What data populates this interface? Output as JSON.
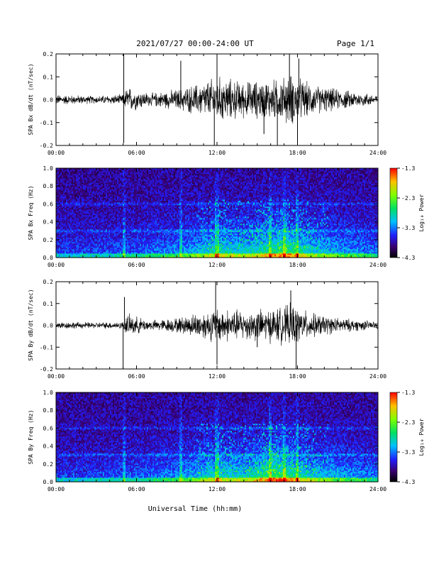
{
  "header": {
    "date_range": "2021/07/27  00:00-24:00 UT",
    "page": "Page 1/1"
  },
  "xlabel": "Universal Time (hh:mm)",
  "colors": {
    "trace": "#000000"
  },
  "chart_data": [
    {
      "type": "line",
      "ylabel": "SPA Bx dB/dt (nT/sec)",
      "xlim": [
        0,
        24
      ],
      "ylim": [
        -0.2,
        0.2
      ],
      "y_ticks": [
        "0.2",
        "0.1",
        "0.0",
        "-0.1",
        "-0.2"
      ],
      "x_ticks": [
        "00:00",
        "06:00",
        "12:00",
        "18:00",
        "24:00"
      ],
      "activity_envelope": [
        {
          "t": 0,
          "amp": 0.02
        },
        {
          "t": 3,
          "amp": 0.015
        },
        {
          "t": 5,
          "amp": 0.02
        },
        {
          "t": 5.3,
          "amp": 0.05
        },
        {
          "t": 7,
          "amp": 0.025
        },
        {
          "t": 9,
          "amp": 0.04
        },
        {
          "t": 10.5,
          "amp": 0.06
        },
        {
          "t": 12,
          "amp": 0.09
        },
        {
          "t": 14,
          "amp": 0.07
        },
        {
          "t": 16.5,
          "amp": 0.08
        },
        {
          "t": 17.5,
          "amp": 0.1
        },
        {
          "t": 19,
          "amp": 0.06
        },
        {
          "t": 21,
          "amp": 0.04
        },
        {
          "t": 24,
          "amp": 0.02
        }
      ],
      "spikes": [
        {
          "t": 5.05,
          "value": -0.19
        },
        {
          "t": 5.05,
          "value": 0.2
        },
        {
          "t": 9.3,
          "value": 0.17
        },
        {
          "t": 11.8,
          "value": -0.2
        },
        {
          "t": 12.0,
          "value": 0.2
        },
        {
          "t": 15.5,
          "value": -0.15
        },
        {
          "t": 16.5,
          "value": -0.2
        },
        {
          "t": 17.4,
          "value": 0.2
        },
        {
          "t": 18.0,
          "value": -0.2
        },
        {
          "t": 18.1,
          "value": 0.18
        }
      ]
    },
    {
      "type": "heatmap",
      "ylabel": "SPA Bx Freq (Hz)",
      "xlim": [
        0,
        24
      ],
      "ylim": [
        0,
        1.0
      ],
      "y_ticks": [
        "1.0",
        "0.8",
        "0.6",
        "0.4",
        "0.2",
        "0.0"
      ],
      "x_ticks": [
        "00:00",
        "06:00",
        "12:00",
        "18:00",
        "24:00"
      ],
      "colorbar": {
        "label": "Log₁₀ Power",
        "ticks": [
          "-1.3",
          "-2.3",
          "-3.3",
          "-4.3"
        ],
        "range": [
          -4.3,
          -1.3
        ]
      },
      "activity_envelope": [
        {
          "t": 0,
          "level": 0.2
        },
        {
          "t": 5,
          "level": 0.25
        },
        {
          "t": 9,
          "level": 0.35
        },
        {
          "t": 12,
          "level": 0.55
        },
        {
          "t": 14,
          "level": 0.5
        },
        {
          "t": 17,
          "level": 0.7
        },
        {
          "t": 19,
          "level": 0.5
        },
        {
          "t": 24,
          "level": 0.3
        }
      ]
    },
    {
      "type": "line",
      "ylabel": "SPA By dB/dt (nT/sec)",
      "xlim": [
        0,
        24
      ],
      "ylim": [
        -0.2,
        0.2
      ],
      "y_ticks": [
        "0.2",
        "0.1",
        "0.0",
        "-0.1",
        "-0.2"
      ],
      "x_ticks": [
        "00:00",
        "06:00",
        "12:00",
        "18:00",
        "24:00"
      ],
      "activity_envelope": [
        {
          "t": 0,
          "amp": 0.015
        },
        {
          "t": 3,
          "amp": 0.012
        },
        {
          "t": 5,
          "amp": 0.015
        },
        {
          "t": 5.3,
          "amp": 0.045
        },
        {
          "t": 7,
          "amp": 0.02
        },
        {
          "t": 9,
          "amp": 0.03
        },
        {
          "t": 10.5,
          "amp": 0.05
        },
        {
          "t": 12,
          "amp": 0.07
        },
        {
          "t": 14,
          "amp": 0.06
        },
        {
          "t": 16.5,
          "amp": 0.07
        },
        {
          "t": 17.5,
          "amp": 0.085
        },
        {
          "t": 19,
          "amp": 0.05
        },
        {
          "t": 21,
          "amp": 0.03
        },
        {
          "t": 24,
          "amp": 0.015
        }
      ],
      "spikes": [
        {
          "t": 5.0,
          "value": -0.2
        },
        {
          "t": 5.1,
          "value": 0.13
        },
        {
          "t": 11.9,
          "value": 0.2
        },
        {
          "t": 12.0,
          "value": -0.18
        },
        {
          "t": 15.0,
          "value": -0.1
        },
        {
          "t": 17.5,
          "value": 0.16
        },
        {
          "t": 17.9,
          "value": -0.2
        }
      ]
    },
    {
      "type": "heatmap",
      "ylabel": "SPA By Freq (Hz)",
      "xlim": [
        0,
        24
      ],
      "ylim": [
        0,
        1.0
      ],
      "y_ticks": [
        "1.0",
        "0.8",
        "0.6",
        "0.4",
        "0.2",
        "0.0"
      ],
      "x_ticks": [
        "00:00",
        "06:00",
        "12:00",
        "18:00",
        "24:00"
      ],
      "colorbar": {
        "label": "Log₁₀ Power",
        "ticks": [
          "-1.3",
          "-2.3",
          "-3.3",
          "-4.3"
        ],
        "range": [
          -4.3,
          -1.3
        ]
      },
      "activity_envelope": [
        {
          "t": 0,
          "level": 0.2
        },
        {
          "t": 5,
          "level": 0.25
        },
        {
          "t": 9,
          "level": 0.35
        },
        {
          "t": 12,
          "level": 0.55
        },
        {
          "t": 14,
          "level": 0.5
        },
        {
          "t": 16.5,
          "level": 0.75
        },
        {
          "t": 19,
          "level": 0.5
        },
        {
          "t": 24,
          "level": 0.3
        }
      ]
    }
  ]
}
